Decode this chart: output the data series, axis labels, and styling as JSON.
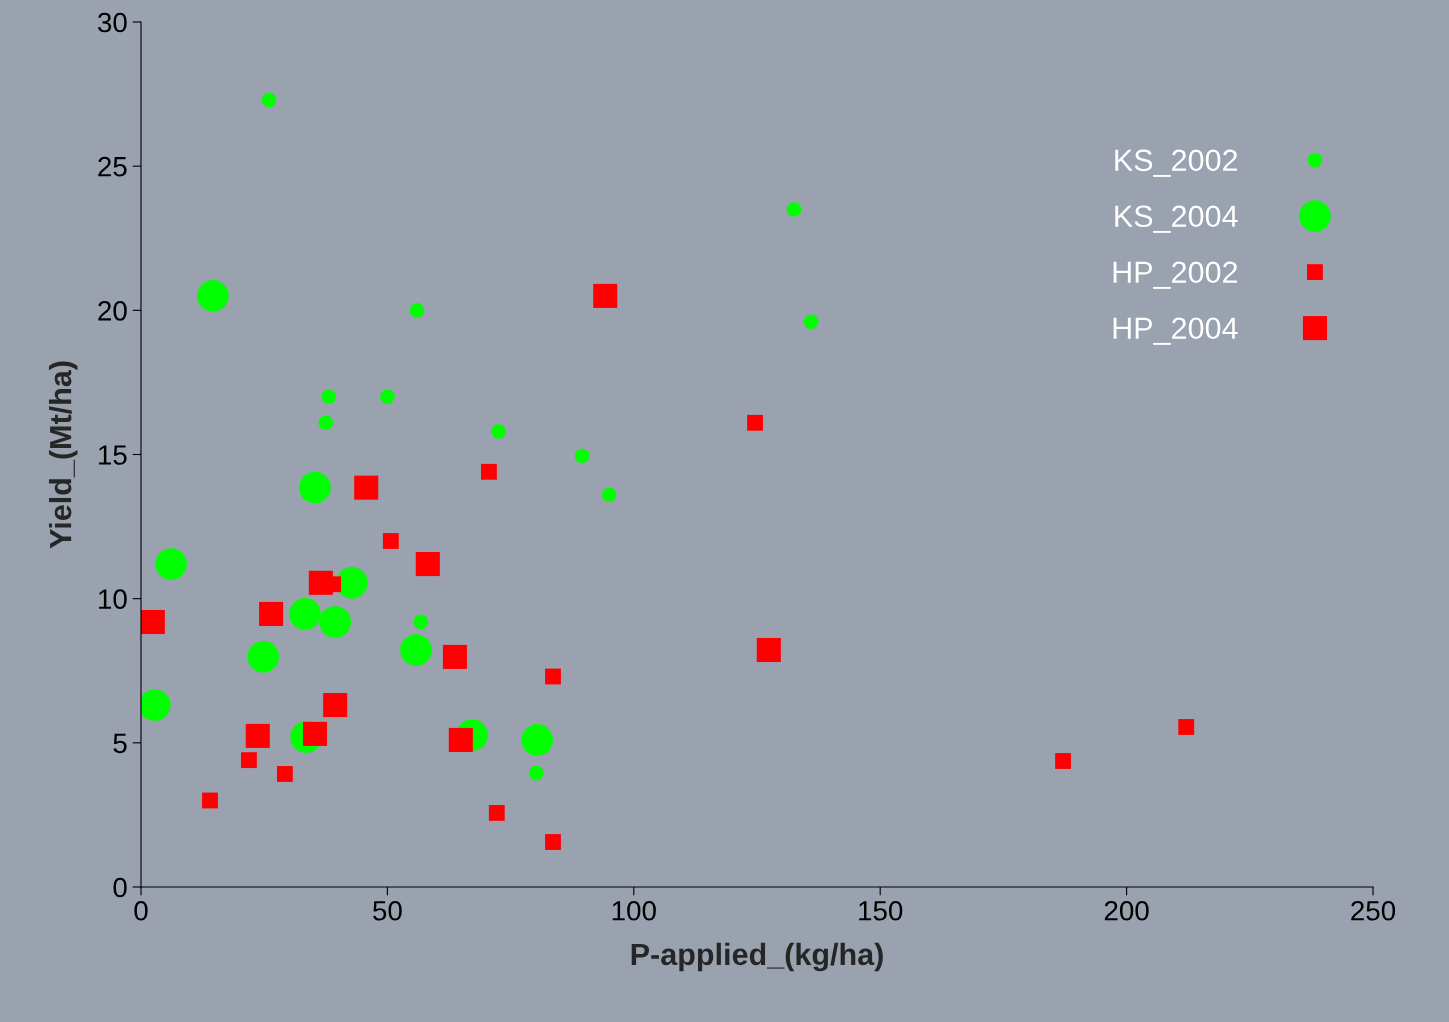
{
  "chart_data": {
    "type": "scatter",
    "xlabel": "P-applied_(kg/ha)",
    "ylabel": "Yield_(Mt/ha)",
    "xlim": [
      0,
      250
    ],
    "xticks": [
      0,
      50,
      100,
      150,
      200,
      250
    ],
    "ylim": [
      0,
      30
    ],
    "yticks": [
      0,
      5,
      10,
      15,
      20,
      25,
      30
    ],
    "grid": false,
    "legend": "right",
    "series": [
      {
        "name": "KS_2002",
        "color": "#00ff00",
        "marker": "circle",
        "x": [
          26,
          132.5,
          56,
          136,
          38.1,
          50,
          37.5,
          72.6,
          89.5,
          95,
          56.8,
          80.2
        ],
        "values": [
          27.3,
          23.5,
          20.0,
          19.6,
          17.0,
          17.0,
          16.1,
          15.8,
          14.95,
          13.6,
          9.2,
          3.95
        ]
      },
      {
        "name": "KS_2004",
        "color": "#00ff00",
        "marker": "circle",
        "x": [
          14.6,
          35.3,
          6.1,
          42.8,
          33.3,
          39.4,
          24.8,
          55.8,
          2.8,
          33.5,
          67.2,
          80.4
        ],
        "values": [
          20.5,
          13.85,
          11.2,
          10.55,
          9.47,
          9.19,
          7.98,
          8.22,
          6.31,
          5.2,
          5.27,
          5.1
        ]
      },
      {
        "name": "HP_2002",
        "color": "#ff0000",
        "marker": "square",
        "x": [
          124.6,
          70.6,
          50.7,
          39.0,
          83.6,
          21.9,
          29.2,
          14,
          72.2,
          83.6,
          187.1,
          212.1
        ],
        "values": [
          16.1,
          14.4,
          12.0,
          10.5,
          7.3,
          4.4,
          3.92,
          3.0,
          2.57,
          1.56,
          4.37,
          5.55
        ]
      },
      {
        "name": "HP_2004",
        "color": "#ff0000",
        "marker": "square",
        "x": [
          94.2,
          45.7,
          58.2,
          36.5,
          26.4,
          2.4,
          63.7,
          127.4,
          39.4,
          23.7,
          35.3,
          64.9
        ],
        "values": [
          20.5,
          13.85,
          11.2,
          10.55,
          9.47,
          9.19,
          7.98,
          8.22,
          6.31,
          5.24,
          5.31,
          5.1
        ]
      }
    ]
  }
}
